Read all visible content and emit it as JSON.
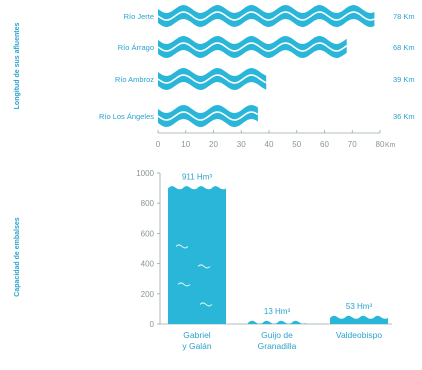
{
  "colors": {
    "accent": "#29b6d8",
    "label": "#2aa3cc",
    "axis": "#9aa7ad",
    "tick": "#8c9497",
    "wave_line": "#ffffff"
  },
  "chart_data": [
    {
      "type": "bar",
      "orientation": "horizontal",
      "mark_style": "wavy-ribbon",
      "ylabel": "Longitud de sus afluentes",
      "categories": [
        "Río Jerte",
        "Río Árrago",
        "Río Ambroz",
        "Río Los Ángeles"
      ],
      "values": [
        78,
        68,
        39,
        36
      ],
      "value_labels": [
        "78 Km",
        "68 Km",
        "39 Km",
        "36 Km"
      ],
      "xlim": [
        0,
        80
      ],
      "x_ticks": [
        "0",
        "10",
        "20",
        "30",
        "40",
        "50",
        "60",
        "70",
        "80"
      ],
      "x_unit": "Km",
      "grid": false
    },
    {
      "type": "bar",
      "orientation": "vertical",
      "mark_style": "water",
      "ylabel": "Capacidad de embalses",
      "categories": [
        "Gabriel y Galán",
        "Guijo de Granadilla",
        "Valdeobispo"
      ],
      "category_lines": [
        [
          "Gabriel",
          "y Galán"
        ],
        [
          "Guijo de",
          "Granadilla"
        ],
        [
          "Valdeobispo"
        ]
      ],
      "values": [
        911,
        13,
        53
      ],
      "value_labels": [
        "911 Hm³",
        "13 Hm³",
        "53 Hm³"
      ],
      "ylim": [
        0,
        1000
      ],
      "y_ticks": [
        "0",
        "200",
        "400",
        "600",
        "800",
        "1000"
      ],
      "grid": false
    }
  ]
}
